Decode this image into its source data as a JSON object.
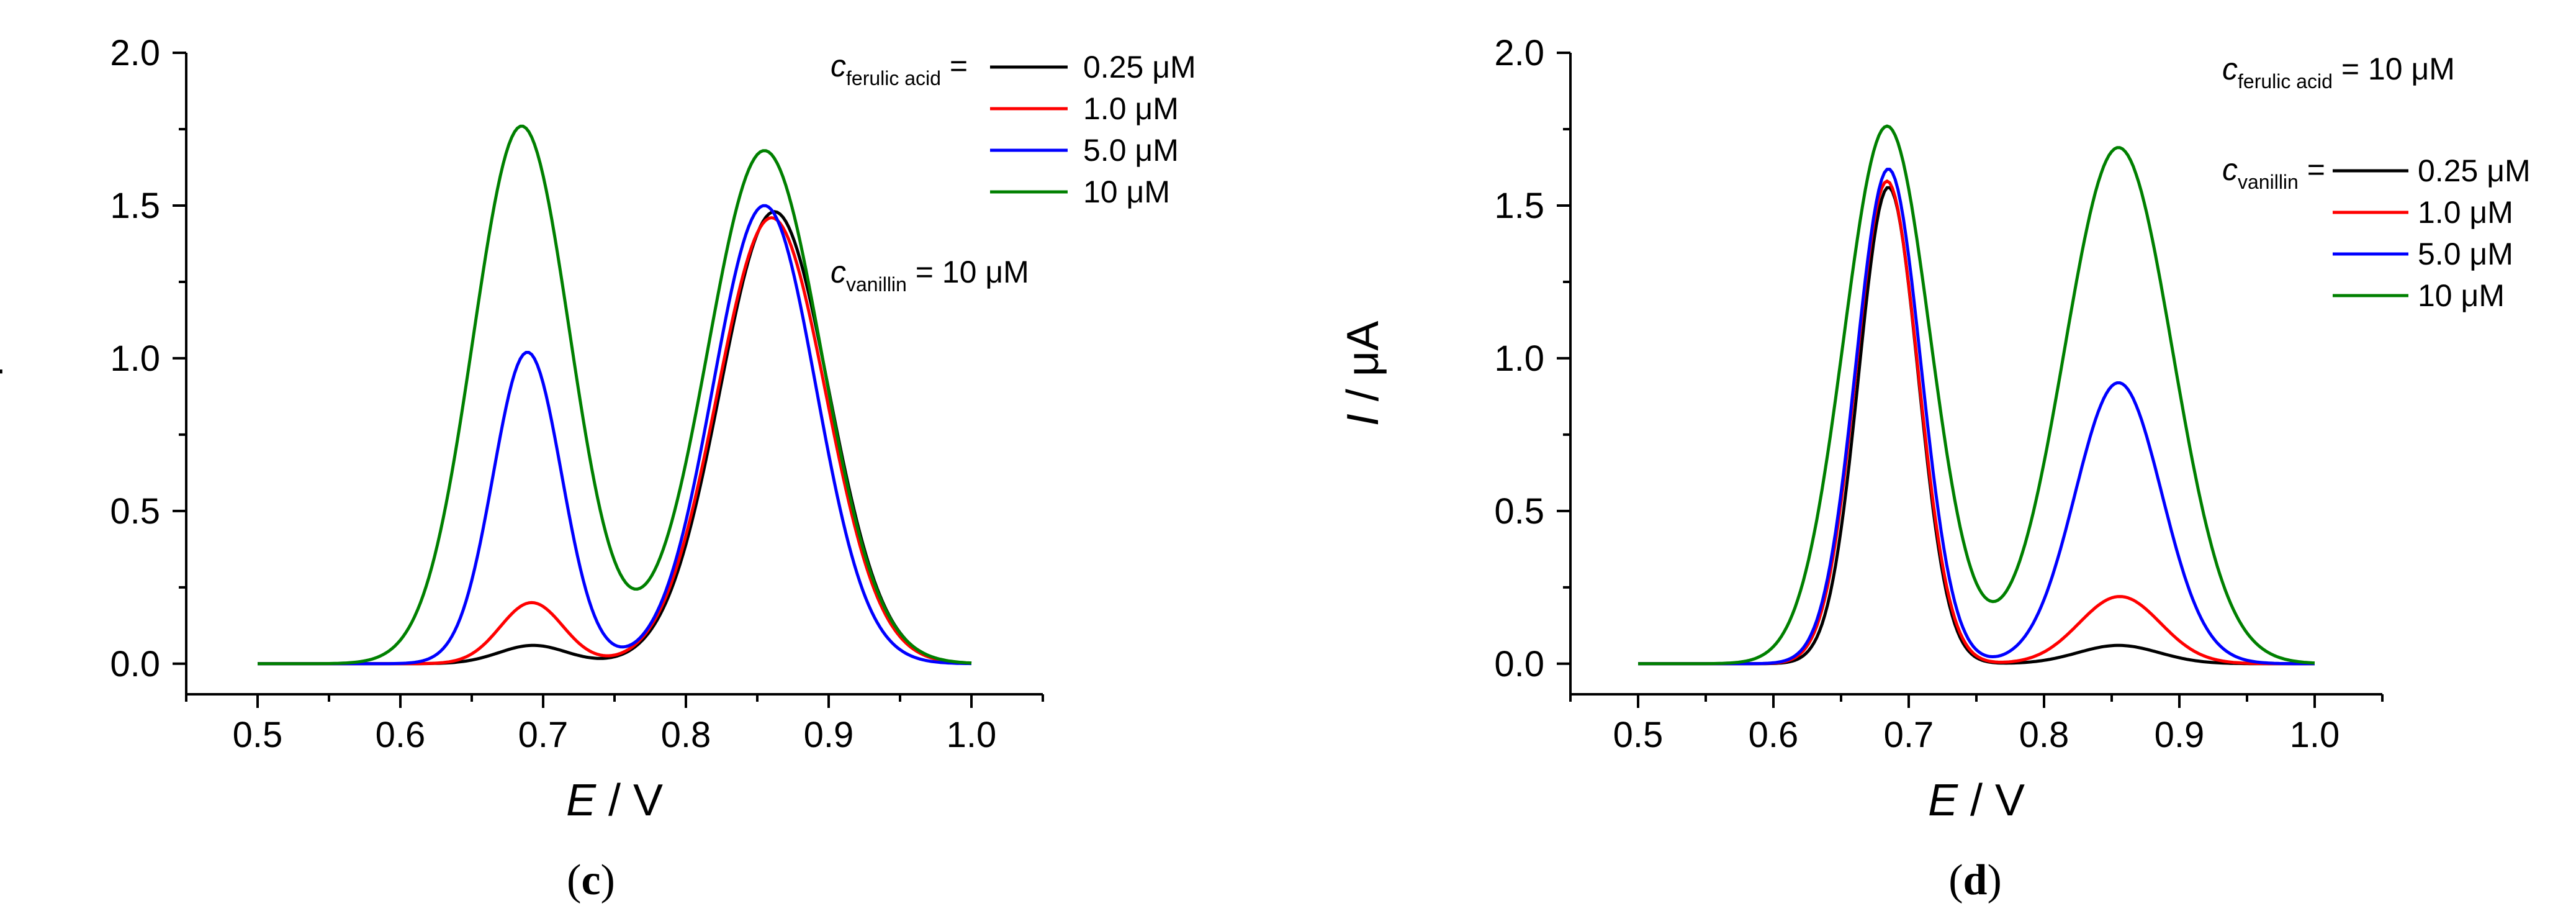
{
  "chart_data": [
    {
      "type": "line",
      "panel_label": "c",
      "xlabel_var": "E",
      "xlabel_unit": " / V",
      "ylabel_var": "I",
      "ylabel_unit": " / μA",
      "xlim": [
        0.45,
        1.05
      ],
      "ylim": [
        -0.1,
        2.0
      ],
      "xticks": [
        0.5,
        0.6,
        0.7,
        0.8,
        0.9,
        1.0
      ],
      "xtick_labels": [
        "0.5",
        "0.6",
        "0.7",
        "0.8",
        "0.9",
        "1.0"
      ],
      "yticks": [
        0.0,
        0.5,
        1.0,
        1.5,
        2.0
      ],
      "ytick_labels": [
        "0.0",
        "0.5",
        "1.0",
        "1.5",
        "2.0"
      ],
      "legend": {
        "variable_symbol": "c",
        "variable_subscript": "ferulic acid",
        "equals": " =",
        "fixed_symbol": "c",
        "fixed_subscript": "vanillin",
        "fixed_value": " = 10 μM"
      },
      "series": [
        {
          "name": "0.25 μM",
          "color": "#000000",
          "peak1": {
            "x": 0.693,
            "y": 0.06,
            "w": 0.024
          },
          "peak2": {
            "x": 0.862,
            "y": 1.48,
            "w": 0.038
          },
          "xrange": [
            0.5,
            1.0
          ]
        },
        {
          "name": "1.0 μM",
          "color": "#ff0000",
          "peak1": {
            "x": 0.692,
            "y": 0.2,
            "w": 0.022
          },
          "peak2": {
            "x": 0.86,
            "y": 1.46,
            "w": 0.038
          },
          "xrange": [
            0.5,
            1.0
          ]
        },
        {
          "name": "5.0 μM",
          "color": "#0000ff",
          "peak1": {
            "x": 0.689,
            "y": 1.02,
            "w": 0.024
          },
          "peak2": {
            "x": 0.855,
            "y": 1.5,
            "w": 0.036
          },
          "xrange": [
            0.5,
            1.0
          ]
        },
        {
          "name": "10 μM",
          "color": "#008000",
          "peak1": {
            "x": 0.685,
            "y": 1.76,
            "w": 0.034
          },
          "peak2": {
            "x": 0.855,
            "y": 1.68,
            "w": 0.04
          },
          "xrange": [
            0.5,
            1.0
          ]
        }
      ]
    },
    {
      "type": "line",
      "panel_label": "d",
      "xlabel_var": "E",
      "xlabel_unit": " / V",
      "ylabel_var": "I",
      "ylabel_unit": " / μA",
      "xlim": [
        0.45,
        1.05
      ],
      "ylim": [
        -0.1,
        2.0
      ],
      "xticks": [
        0.5,
        0.6,
        0.7,
        0.8,
        0.9,
        1.0
      ],
      "xtick_labels": [
        "0.5",
        "0.6",
        "0.7",
        "0.8",
        "0.9",
        "1.0"
      ],
      "yticks": [
        0.0,
        0.5,
        1.0,
        1.5,
        2.0
      ],
      "ytick_labels": [
        "0.0",
        "0.5",
        "1.0",
        "1.5",
        "2.0"
      ],
      "legend": {
        "variable_symbol": "c",
        "variable_subscript": "vanillin",
        "equals": " =",
        "fixed_symbol": "c",
        "fixed_subscript": "ferulic acid",
        "fixed_value": " = 10 μM"
      },
      "series": [
        {
          "name": "0.25 μM",
          "color": "#000000",
          "peak1": {
            "x": 0.685,
            "y": 1.56,
            "w": 0.022
          },
          "peak2": {
            "x": 0.855,
            "y": 0.06,
            "w": 0.03
          },
          "xrange": [
            0.5,
            1.0
          ]
        },
        {
          "name": "1.0 μM",
          "color": "#ff0000",
          "peak1": {
            "x": 0.684,
            "y": 1.58,
            "w": 0.023
          },
          "peak2": {
            "x": 0.856,
            "y": 0.22,
            "w": 0.03
          },
          "xrange": [
            0.5,
            1.0
          ]
        },
        {
          "name": "5.0 μM",
          "color": "#0000ff",
          "peak1": {
            "x": 0.685,
            "y": 1.62,
            "w": 0.024
          },
          "peak2": {
            "x": 0.855,
            "y": 0.92,
            "w": 0.032
          },
          "xrange": [
            0.5,
            1.0
          ]
        },
        {
          "name": "10 μM",
          "color": "#008000",
          "peak1": {
            "x": 0.684,
            "y": 1.76,
            "w": 0.032
          },
          "peak2": {
            "x": 0.855,
            "y": 1.69,
            "w": 0.04
          },
          "xrange": [
            0.5,
            1.0
          ]
        }
      ]
    }
  ]
}
